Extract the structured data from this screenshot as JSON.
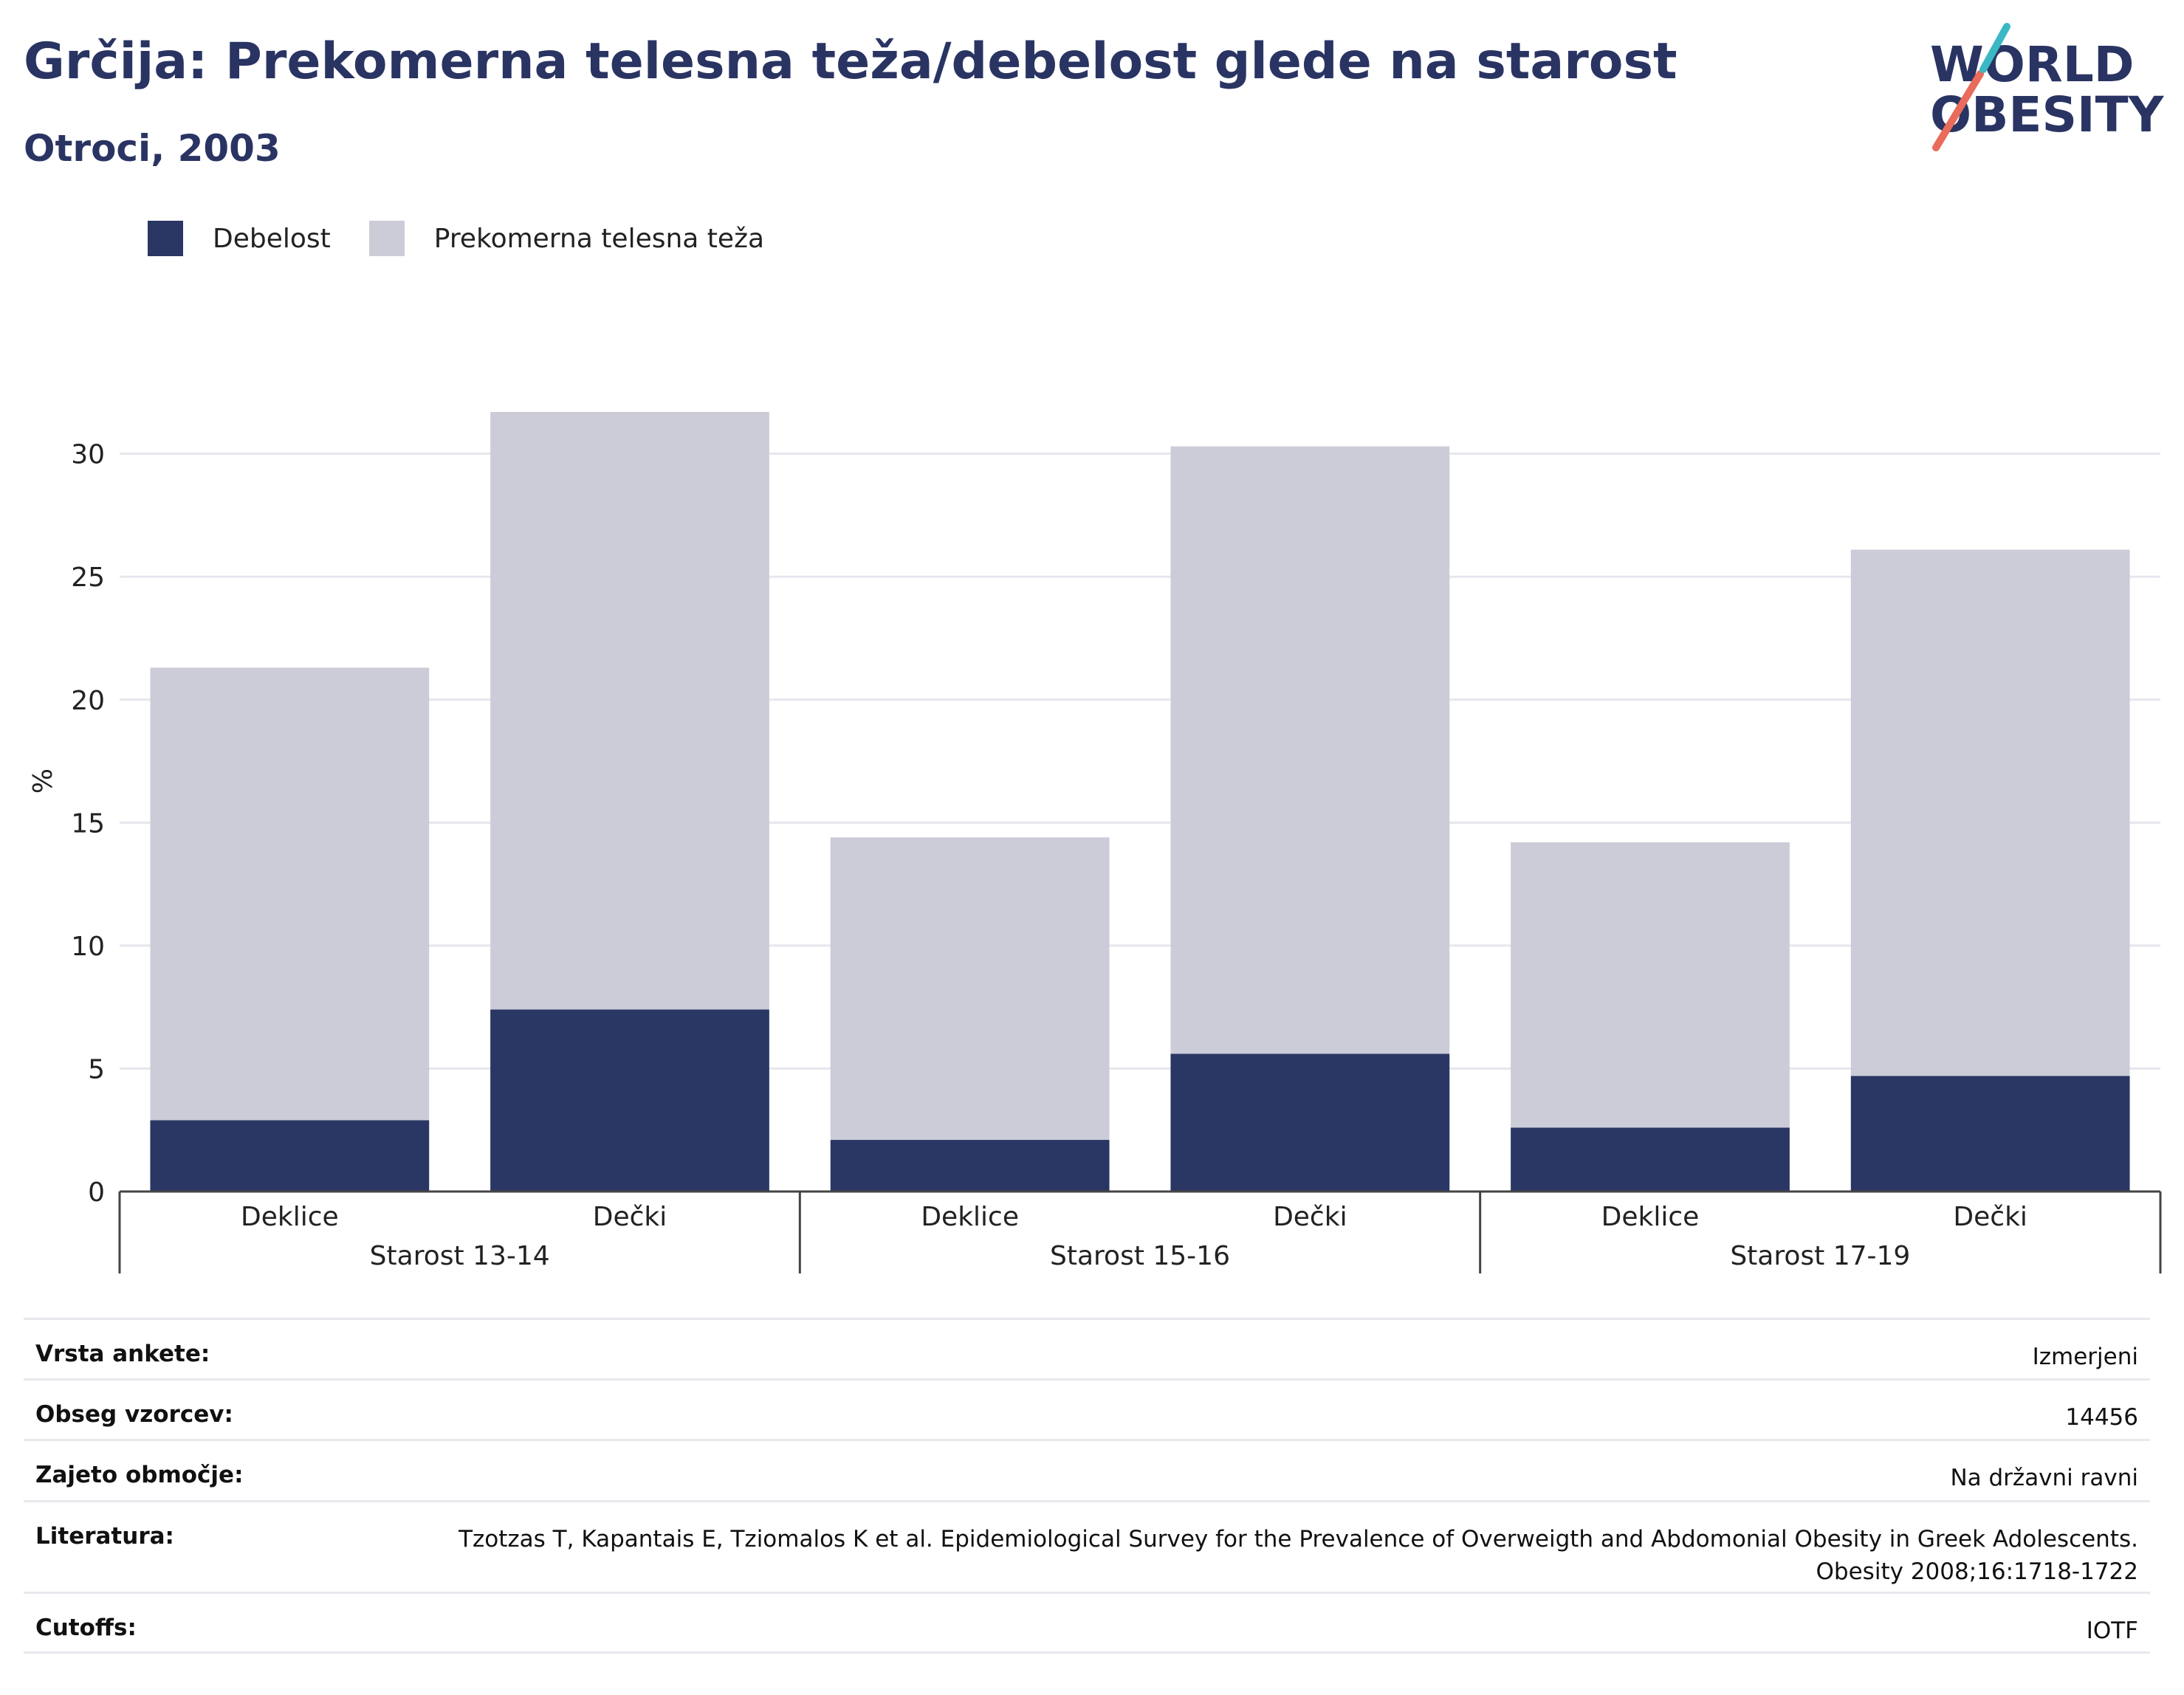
{
  "header": {
    "title": "Grčija: Prekomerna telesna teža/debelost glede na starost",
    "subtitle": "Otroci, 2003"
  },
  "logo": {
    "line1": "WORLD",
    "line2": "OBESITY"
  },
  "legend": [
    {
      "label": "Debelost",
      "color": "#2a3663"
    },
    {
      "label": "Prekomerna telesna teža",
      "color": "#cbccd8"
    }
  ],
  "chart_data": {
    "type": "bar",
    "stacked": true,
    "ylabel": "%",
    "ylim": [
      0,
      32
    ],
    "yticks": [
      0,
      5,
      10,
      15,
      20,
      25,
      30
    ],
    "grid": true,
    "legend_position": "top-left",
    "groups": [
      "Starost 13-14",
      "Starost 15-16",
      "Starost 17-19"
    ],
    "categories": [
      "Deklice",
      "Dečki",
      "Deklice",
      "Dečki",
      "Deklice",
      "Dečki"
    ],
    "series": [
      {
        "name": "Debelost",
        "color": "#2a3663",
        "values": [
          2.9,
          7.4,
          2.1,
          5.6,
          2.6,
          4.7
        ]
      },
      {
        "name": "Prekomerna telesna teža",
        "color": "#cbccd8",
        "values": [
          18.4,
          24.3,
          12.3,
          24.7,
          11.6,
          21.4
        ]
      }
    ]
  },
  "info": [
    {
      "label": "Vrsta ankete:",
      "value": "Izmerjeni"
    },
    {
      "label": "Obseg vzorcev:",
      "value": "14456"
    },
    {
      "label": "Zajeto območje:",
      "value": "Na državni ravni"
    },
    {
      "label": "Literatura:",
      "value": "Tzotzas T, Kapantais E, Tziomalos K et al. Epidemiological Survey for the Prevalence of Overweigth and Abdomonial Obesity in Greek Adolescents. Obesity 2008;16:1718-1722"
    },
    {
      "label": "Cutoffs:",
      "value": "IOTF"
    }
  ]
}
